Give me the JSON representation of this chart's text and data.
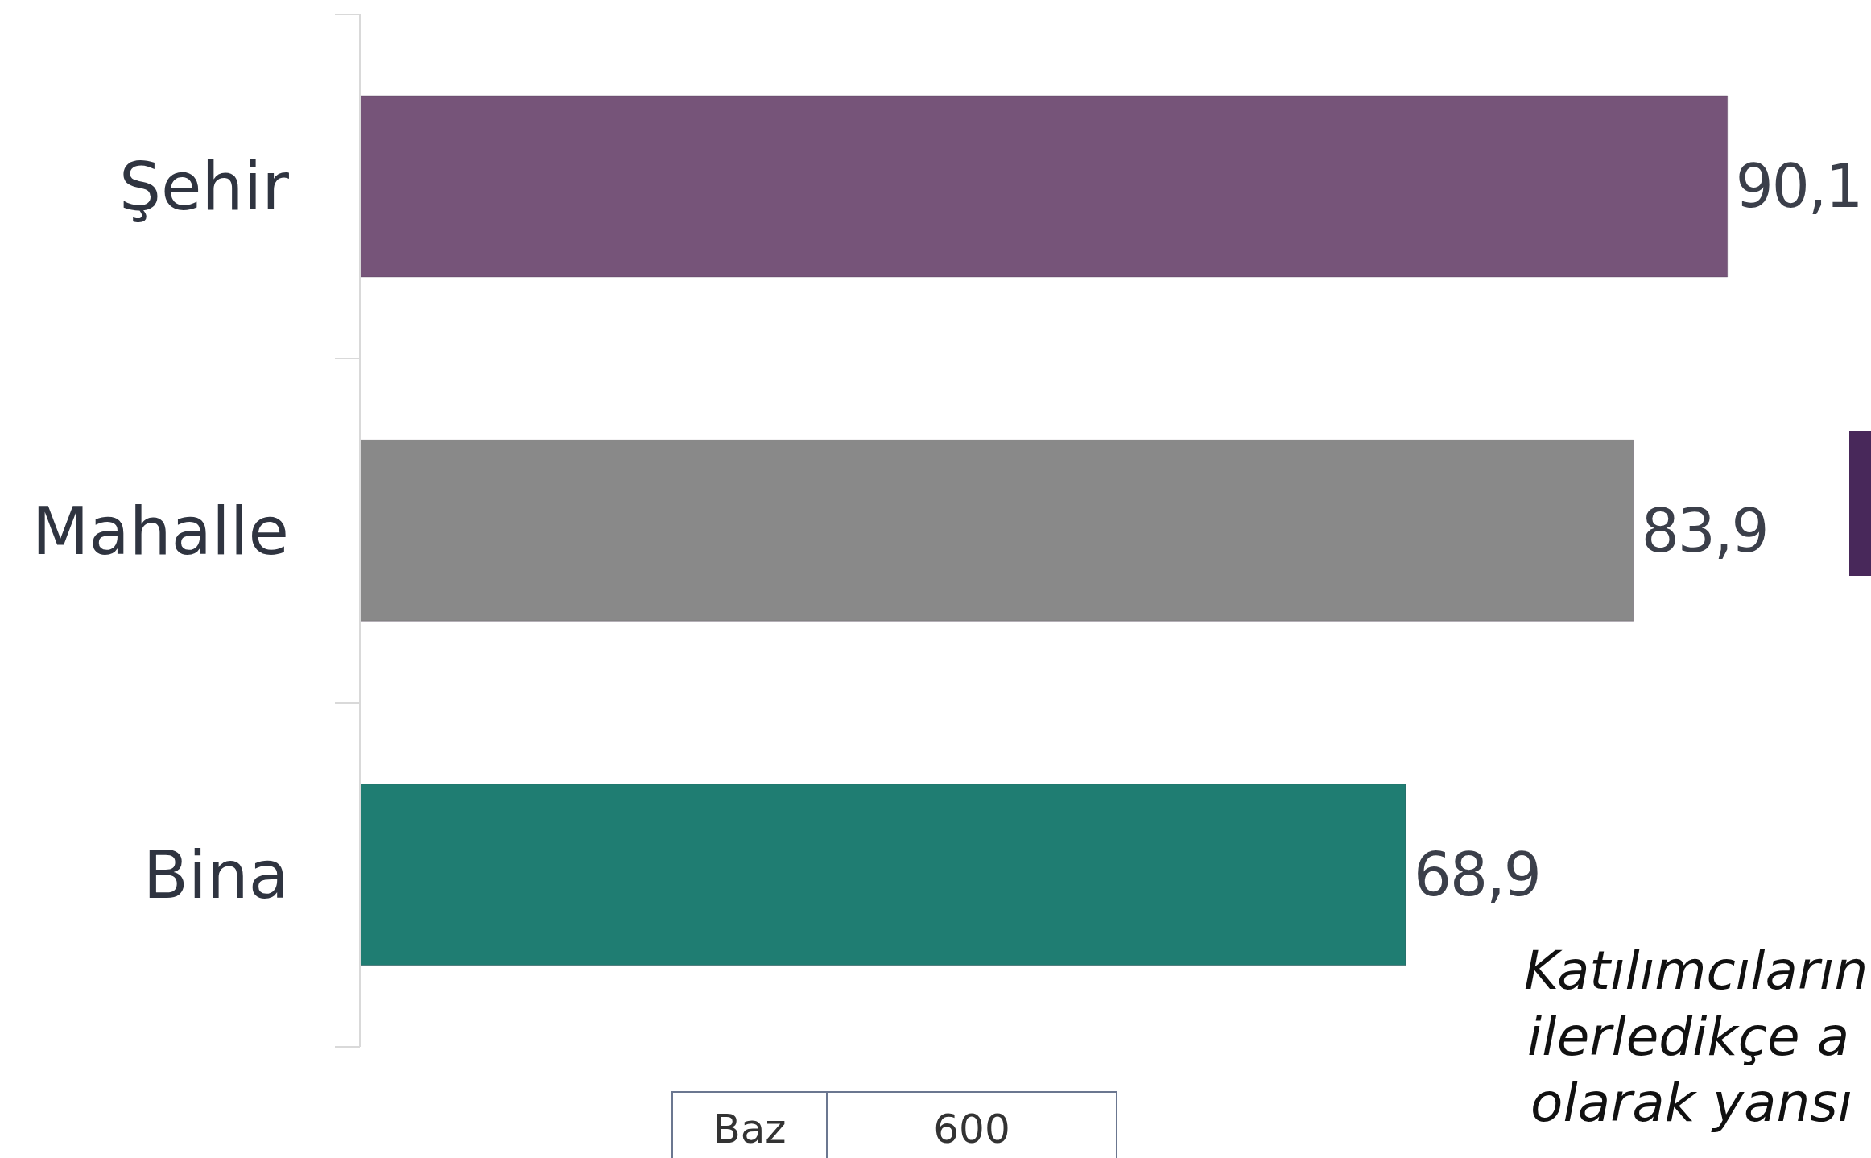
{
  "chart_data": {
    "type": "bar",
    "orientation": "horizontal",
    "categories": [
      "Şehir",
      "Mahalle",
      "Bina"
    ],
    "values": [
      90.1,
      83.9,
      68.9
    ],
    "colors": [
      "#765479",
      "#898989",
      "#1f7d72"
    ],
    "data_labels": true,
    "value_labels": [
      "90,1",
      "83,9",
      "68,9"
    ],
    "tick_labels": "y",
    "annotations": [
      "Katılımcıların",
      "ilerledikçe a",
      "olarak yansı",
      "Baz",
      "600"
    ]
  }
}
